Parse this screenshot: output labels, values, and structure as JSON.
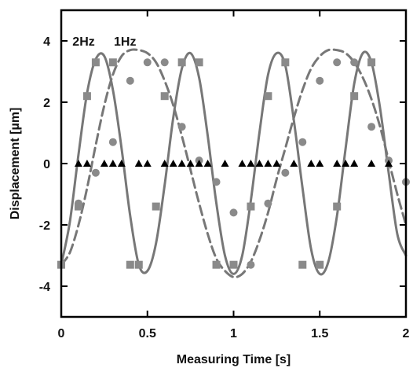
{
  "chart_data": {
    "type": "line",
    "title": "",
    "xlabel": "Measuring Time [s]",
    "ylabel": "Displacement [µm]",
    "xlim": [
      0,
      2
    ],
    "ylim": [
      -5,
      5
    ],
    "xticks": [
      0,
      0.5,
      1,
      1.5,
      2
    ],
    "xtick_labels": [
      "0",
      "0.5",
      "1",
      "1.5",
      "2"
    ],
    "yticks": [
      -4,
      -2,
      0,
      2,
      4
    ],
    "ytick_labels": [
      "-4",
      "-2",
      "0",
      "2",
      "4"
    ],
    "grid": false,
    "annotations": [
      {
        "text": "2Hz",
        "x": 0.13,
        "y": 4.0
      },
      {
        "text": "1Hz",
        "x": 0.37,
        "y": 4.0
      }
    ],
    "series": [
      {
        "kind": "line",
        "style": "solid",
        "color": "#777777",
        "x": [
          0,
          0.05,
          0.1,
          0.15,
          0.2,
          0.25,
          0.3,
          0.35,
          0.4,
          0.45,
          0.5,
          0.55,
          0.6,
          0.65,
          0.7,
          0.75,
          0.8,
          0.85,
          0.9,
          0.95,
          1.0,
          1.05,
          1.1,
          1.15,
          1.2,
          1.25,
          1.3,
          1.35,
          1.4,
          1.45,
          1.5,
          1.55,
          1.6,
          1.65,
          1.7,
          1.75,
          1.8,
          1.85,
          1.9,
          1.95,
          2.0
        ],
        "y": [
          -3.3,
          -1.9,
          0.3,
          2.3,
          3.4,
          3.5,
          2.4,
          0.5,
          -1.7,
          -3.3,
          -3.5,
          -2.6,
          -0.7,
          1.5,
          3.1,
          3.6,
          2.8,
          0.9,
          -1.3,
          -3.0,
          -3.6,
          -3.0,
          -1.2,
          1.0,
          2.9,
          3.6,
          3.2,
          1.4,
          -0.8,
          -2.8,
          -3.6,
          -3.2,
          -1.7,
          0.5,
          2.6,
          3.6,
          3.3,
          1.8,
          -0.3,
          -2.3,
          -3.0
        ]
      },
      {
        "kind": "line",
        "style": "dashed",
        "color": "#777777",
        "x": [
          0,
          0.05,
          0.1,
          0.15,
          0.2,
          0.25,
          0.3,
          0.35,
          0.4,
          0.45,
          0.5,
          0.55,
          0.6,
          0.65,
          0.7,
          0.75,
          0.8,
          0.85,
          0.9,
          0.95,
          1.0,
          1.05,
          1.1,
          1.15,
          1.2,
          1.25,
          1.3,
          1.35,
          1.4,
          1.45,
          1.5,
          1.55,
          1.6,
          1.65,
          1.7,
          1.75,
          1.8,
          1.85,
          1.9,
          1.95,
          2.0
        ],
        "y": [
          -3.3,
          -2.9,
          -2.0,
          -0.8,
          0.6,
          1.9,
          2.9,
          3.5,
          3.7,
          3.7,
          3.6,
          3.3,
          2.7,
          1.9,
          0.9,
          -0.2,
          -1.3,
          -2.3,
          -3.1,
          -3.5,
          -3.7,
          -3.6,
          -3.2,
          -2.5,
          -1.6,
          -0.5,
          0.5,
          1.5,
          2.4,
          3.1,
          3.5,
          3.7,
          3.7,
          3.6,
          3.3,
          2.8,
          2.1,
          1.2,
          0.1,
          -1.0,
          -2.0
        ]
      },
      {
        "kind": "markers",
        "marker": "square",
        "color": "#8a8a8a",
        "x": [
          0.0,
          0.1,
          0.15,
          0.2,
          0.3,
          0.4,
          0.45,
          0.55,
          0.6,
          0.7,
          0.8,
          0.9,
          1.0,
          1.1,
          1.2,
          1.3,
          1.4,
          1.5,
          1.6,
          1.7,
          1.8
        ],
        "y": [
          -3.3,
          -1.4,
          2.2,
          3.3,
          3.3,
          -3.3,
          -3.3,
          -1.4,
          2.2,
          3.3,
          3.3,
          -3.3,
          -3.3,
          -1.4,
          2.2,
          3.3,
          -3.3,
          -3.3,
          -1.4,
          2.2,
          3.3
        ]
      },
      {
        "kind": "markers",
        "marker": "circle",
        "color": "#8a8a8a",
        "x": [
          0.0,
          0.1,
          0.2,
          0.3,
          0.4,
          0.5,
          0.6,
          0.7,
          0.8,
          0.9,
          1.0,
          1.1,
          1.2,
          1.3,
          1.4,
          1.5,
          1.6,
          1.7,
          1.8,
          1.9,
          2.0
        ],
        "y": [
          -3.3,
          -1.3,
          -0.3,
          0.7,
          2.7,
          3.3,
          3.3,
          1.2,
          0.1,
          -0.6,
          -1.6,
          -3.3,
          -1.3,
          -0.3,
          0.7,
          2.7,
          3.3,
          3.3,
          1.2,
          0.1,
          -0.6
        ]
      },
      {
        "kind": "markers",
        "marker": "triangle",
        "color": "#000000",
        "x": [
          0.1,
          0.15,
          0.25,
          0.3,
          0.35,
          0.45,
          0.5,
          0.6,
          0.65,
          0.7,
          0.75,
          0.8,
          0.85,
          0.95,
          1.05,
          1.1,
          1.15,
          1.2,
          1.25,
          1.35,
          1.45,
          1.5,
          1.6,
          1.65,
          1.7,
          1.8,
          1.9
        ],
        "y": [
          0,
          0,
          0,
          0,
          0,
          0,
          0,
          0,
          0,
          0,
          0,
          0,
          0,
          0,
          0,
          0,
          0,
          0,
          0,
          0,
          0,
          0,
          0,
          0,
          0,
          0,
          0
        ]
      }
    ]
  }
}
